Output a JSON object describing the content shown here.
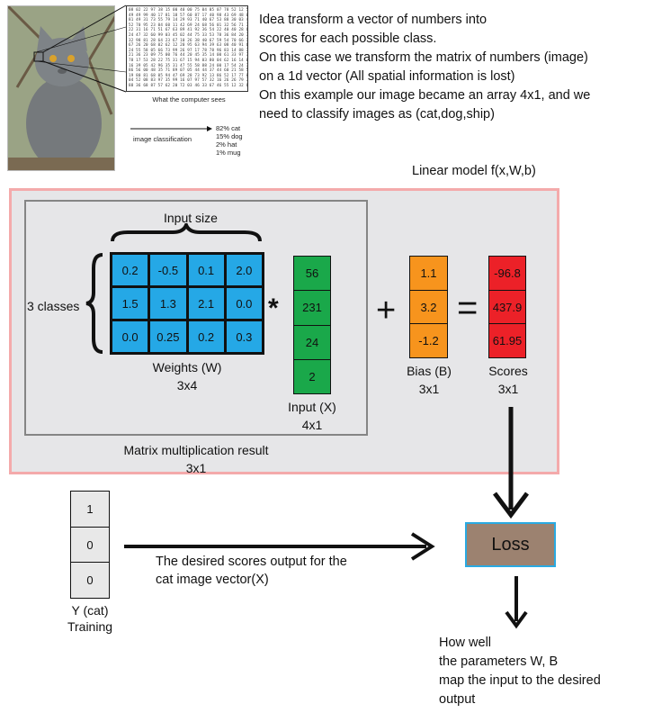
{
  "top_image": {
    "computer_caption": "What the computer sees",
    "classification_label": "image classification",
    "predictions": [
      "82% cat",
      "15% dog",
      "2% hat",
      "1% mug"
    ]
  },
  "description": [
    "Idea transform a vector of numbers into",
    "scores for each possible class.",
    "On this case we transform the matrix of numbers (image)",
    "on a 1d vector (All spatial information is lost)",
    "On this example our image became an array 4x1, and we",
    "need to classify images as (cat,dog,ship)"
  ],
  "model_title": "Linear model f(x,W,b)",
  "input_size_label": "Input size",
  "classes_label": "3 classes",
  "weights": {
    "values": [
      [
        "0.2",
        "-0.5",
        "0.1",
        "2.0"
      ],
      [
        "1.5",
        "1.3",
        "2.1",
        "0.0"
      ],
      [
        "0.0",
        "0.25",
        "0.2",
        "0.3"
      ]
    ],
    "label": "Weights (W)",
    "dims": "3x4"
  },
  "multiply_symbol": "*",
  "input": {
    "values": [
      "56",
      "231",
      "24",
      "2"
    ],
    "label": "Input (X)",
    "dims": "4x1"
  },
  "plus_symbol": "+",
  "bias": {
    "values": [
      "1.1",
      "3.2",
      "-1.2"
    ],
    "label": "Bias (B)",
    "dims": "3x1"
  },
  "equals_symbol": "=",
  "scores": {
    "values": [
      "-96.8",
      "437.9",
      "61.95"
    ],
    "label": "Scores",
    "dims": "3x1"
  },
  "matmul_result": {
    "label": "Matrix multiplication result",
    "dims": "3x1"
  },
  "target": {
    "values": [
      "1",
      "0",
      "0"
    ],
    "label": "Y (cat)",
    "sublabel": "Training"
  },
  "desired_text": [
    "The desired scores output for the",
    "cat image vector(X)"
  ],
  "loss_label": "Loss",
  "loss_desc": [
    "How well",
    "the parameters W, B",
    "map the input to the desired",
    "output"
  ],
  "colors": {
    "weights": "#25a8e6",
    "input": "#1aa84a",
    "bias": "#f7941d",
    "scores": "#ec2128",
    "loss": "#9c8270",
    "loss_border": "#29aae2",
    "panel": "#e6e6e8",
    "panel_border": "#f4aaab"
  }
}
